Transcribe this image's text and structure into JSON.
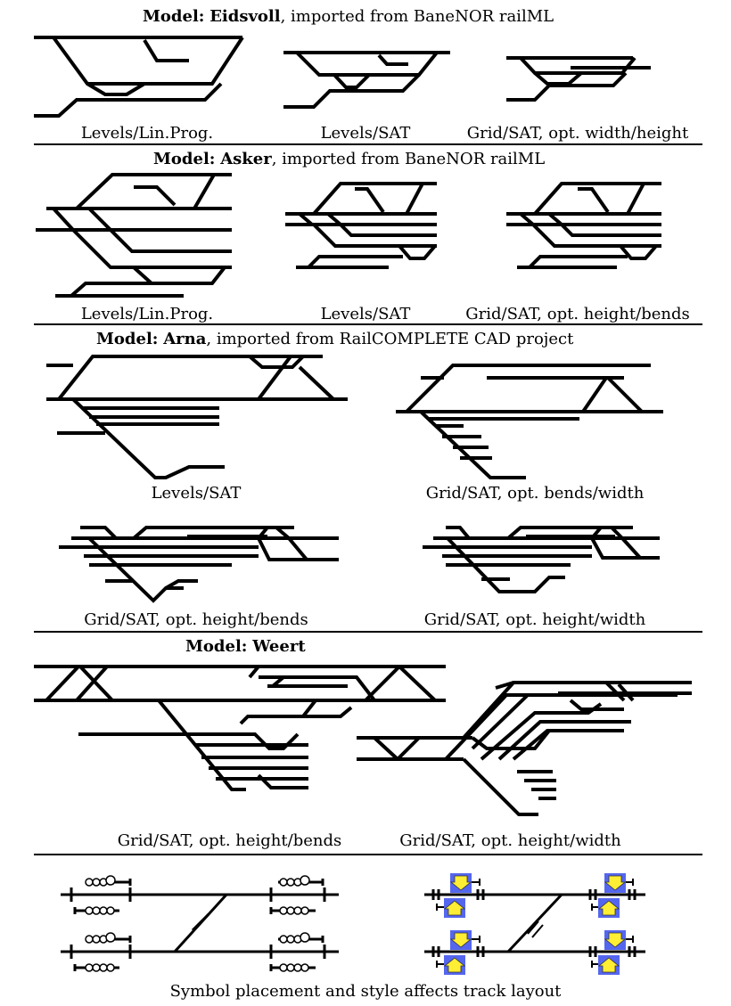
{
  "sections": [
    {
      "model_label": "Model:",
      "model_name": "Eidsvoll",
      "model_suffix": ", imported from BaneNOR railML",
      "captions": [
        "Levels/Lin.Prog.",
        "Levels/SAT",
        "Grid/SAT, opt. width/height"
      ]
    },
    {
      "model_label": "Model:",
      "model_name": "Asker",
      "model_suffix": ", imported from BaneNOR railML",
      "captions": [
        "Levels/Lin.Prog.",
        "Levels/SAT",
        "Grid/SAT, opt. height/bends"
      ]
    },
    {
      "model_label": "Model:",
      "model_name": "Arna",
      "model_suffix": ", imported from RailCOMPLETE CAD project",
      "captions": [
        "Levels/SAT",
        "Grid/SAT, opt. bends/width",
        "Grid/SAT, opt. height/bends",
        "Grid/SAT, opt. height/width"
      ]
    },
    {
      "model_label": "Model:",
      "model_name": "Weert",
      "model_suffix": "",
      "captions": [
        "Grid/SAT, opt. height/bends",
        "Grid/SAT, opt. height/width"
      ]
    }
  ],
  "symbols": {
    "caption": "Symbol placement and style affects track layout",
    "signal_color": "#5566ee",
    "arrow_color": "#ffee33"
  }
}
